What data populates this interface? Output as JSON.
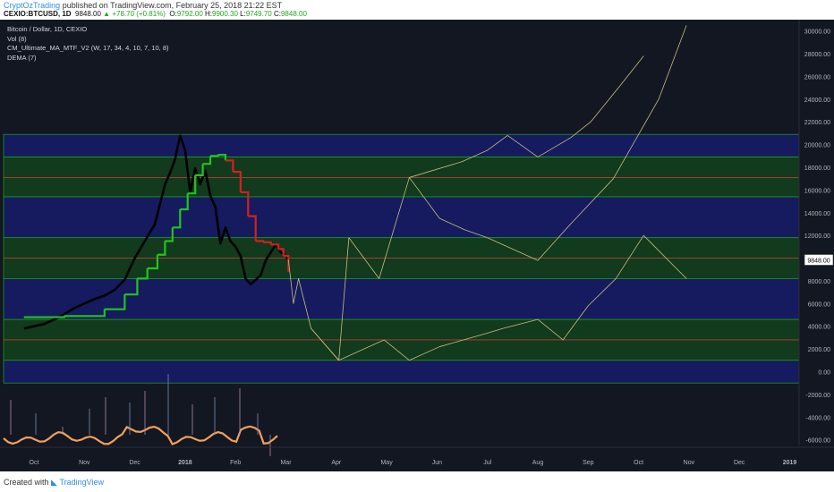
{
  "header": {
    "author": "CryptOzTrading",
    "published_text": " published on TradingView.com, February 25, 2018 21:22 EST",
    "symbol": "CEXIO:BTCUSD, 1D",
    "last": "9848.00",
    "change": "+78.70 (+0.81%)",
    "o_label": "O:",
    "o_value": "9792.00",
    "h_label": "H:",
    "h_value": "9900.30",
    "l_label": "L:",
    "l_value": "9749.70",
    "c_label": "C:",
    "c_value": "9848.00"
  },
  "legend": {
    "title": "Bitcoin / Dollar, 1D, CEXIO",
    "indicators": [
      "Vol (8)",
      "CM_Ultimate_MA_MTF_V2 (W, 17, 34, 4, 10, 7, 10, 8)",
      "DEMA (7)"
    ]
  },
  "footer": {
    "created_with": "Created with",
    "brand": "TradingView"
  },
  "colors": {
    "background": "#131722",
    "blue_zone": "#151b5e",
    "green_zone": "#123a1c",
    "zone_border": "#1fa61f",
    "mid_line": "#b5403a",
    "price": "#000000",
    "ma_up": "#22c322",
    "ma_down": "#d42020",
    "projection": "#c8bd82",
    "oscillator": "#f4a05a"
  },
  "chart_data": {
    "type": "line",
    "x_ticks": [
      "Oct",
      "Nov",
      "Dec",
      "2018",
      "Feb",
      "Mar",
      "Apr",
      "May",
      "Jun",
      "Jul",
      "Aug",
      "Sep",
      "Oct",
      "Nov",
      "Dec",
      "2019"
    ],
    "y_ticks": [
      "30000.00",
      "28000.00",
      "26000.00",
      "24000.00",
      "22000.00",
      "20000.00",
      "18000.00",
      "16000.00",
      "14000.00",
      "12000.00",
      "10000.00",
      "8000.00",
      "6000.00",
      "4000.00",
      "2000.00",
      "0.00",
      "-2000.00",
      "-4000.00",
      "-6000.00"
    ],
    "ylim": [
      -6500,
      31000
    ],
    "last_price_label": "9848.00",
    "last_price": 9848,
    "zones": [
      {
        "kind": "blue",
        "from": 18900,
        "to": 20900
      },
      {
        "kind": "green",
        "from": 15400,
        "to": 18900
      },
      {
        "kind": "blue",
        "from": 11800,
        "to": 15400
      },
      {
        "kind": "green",
        "from": 8200,
        "to": 11800
      },
      {
        "kind": "blue",
        "from": 4600,
        "to": 8200
      },
      {
        "kind": "green",
        "from": 1000,
        "to": 4600
      },
      {
        "kind": "blue",
        "from": -1000,
        "to": 1000
      }
    ],
    "zone_mid_lines": [
      17100,
      10000,
      2800
    ],
    "series": [
      {
        "x": [
          -0.2,
          0.2,
          0.5,
          0.8,
          1.0,
          1.2,
          1.4,
          1.6,
          1.8,
          2.0,
          2.2,
          2.4,
          2.6,
          2.7,
          2.8,
          2.9,
          3.0,
          3.1,
          3.2,
          3.3,
          3.4,
          3.5,
          3.6,
          3.7,
          3.8,
          3.9,
          4.0,
          4.1,
          4.2,
          4.3,
          4.4,
          4.5,
          4.6,
          4.7,
          4.8,
          4.9,
          5.0,
          5.05
        ],
        "y": [
          3800,
          4200,
          4800,
          5600,
          6000,
          6400,
          6700,
          7200,
          8100,
          10000,
          11500,
          13000,
          16500,
          17500,
          18700,
          20800,
          19500,
          15800,
          17900,
          16500,
          17700,
          15500,
          14500,
          11300,
          12700,
          11500,
          11000,
          10200,
          8200,
          7700,
          8100,
          8500,
          9800,
          10500,
          11200,
          10500,
          10200,
          9848
        ]
      },
      {
        "x": [
          -0.2,
          0.6,
          1.4,
          1.8,
          2.05,
          2.25,
          2.45,
          2.6,
          2.75,
          2.9,
          3.05,
          3.2,
          3.35,
          3.5,
          3.65,
          3.8,
          3.95,
          4.1,
          4.25,
          4.4,
          4.55,
          4.7,
          4.85,
          4.95,
          5.05
        ],
        "y": [
          4800,
          4900,
          5500,
          6800,
          8200,
          9100,
          10300,
          11500,
          12700,
          14300,
          15700,
          17300,
          18300,
          19000,
          19100,
          18600,
          17600,
          15800,
          13700,
          11500,
          11400,
          11200,
          10800,
          10200,
          8800
        ]
      },
      {
        "x": [
          5.05,
          5.15,
          5.25,
          5.5,
          6.05,
          6.25,
          6.85,
          7.45,
          8.05,
          8.55,
          9.0,
          9.4,
          10.0,
          10.65,
          11.5,
          12.4,
          12.95
        ],
        "y": [
          9848,
          6000,
          8200,
          3800,
          1000,
          11800,
          8200,
          17100,
          13500,
          12500,
          11800,
          11000,
          9800,
          13000,
          17000,
          24000,
          30500
        ]
      },
      {
        "x": [
          5.5,
          6.05,
          6.95,
          7.45,
          8.05,
          9.0,
          9.3,
          10.0,
          10.5,
          11.0,
          11.55,
          12.1,
          12.95
        ],
        "y": [
          3800,
          1000,
          2800,
          1000,
          2200,
          3400,
          3800,
          4600,
          2800,
          5800,
          8200,
          12000,
          8200
        ]
      },
      {
        "x": [
          7.45,
          8.5,
          9.0,
          9.4,
          10.0,
          10.65,
          11.05,
          11.6,
          12.1
        ],
        "y": [
          17100,
          18500,
          19500,
          20800,
          18900,
          20600,
          22000,
          25000,
          27800
        ]
      }
    ]
  }
}
